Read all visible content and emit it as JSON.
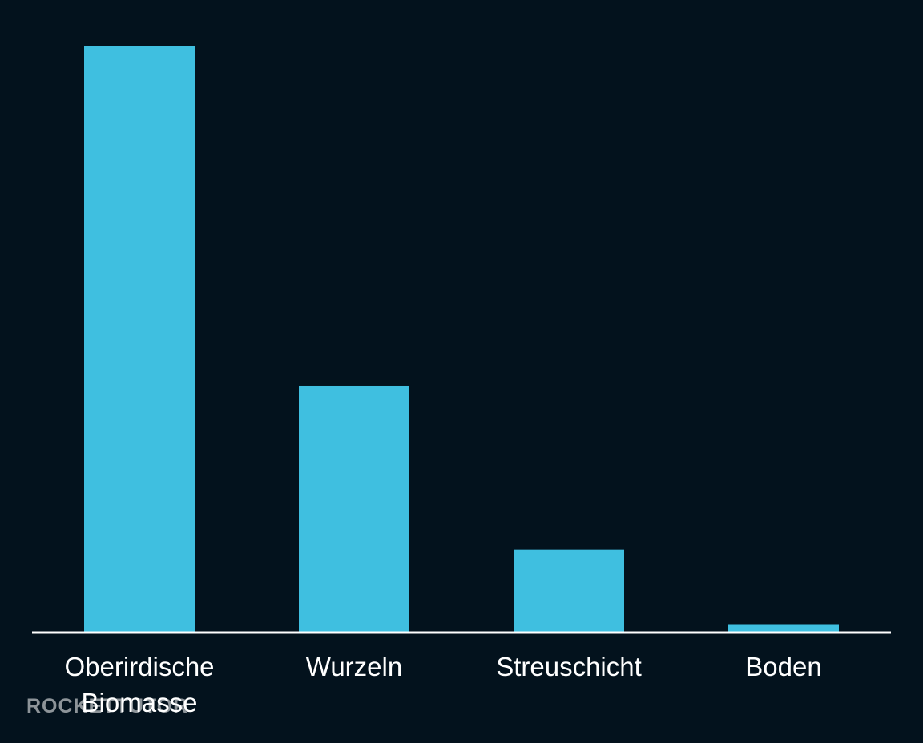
{
  "chart_data": {
    "type": "bar",
    "categories": [
      "Oberirdische Biomasse",
      "Wurzeln",
      "Streuschicht",
      "Boden"
    ],
    "values": [
      100,
      42,
      14,
      1.3
    ],
    "title": "",
    "xlabel": "",
    "ylabel": "",
    "ylim": [
      0,
      100
    ],
    "grid": false,
    "bar_color": "#3fbfe0",
    "baseline_color": "#ffffff",
    "background_color": "#03121d"
  },
  "watermark": "ROCKETTUTOR"
}
